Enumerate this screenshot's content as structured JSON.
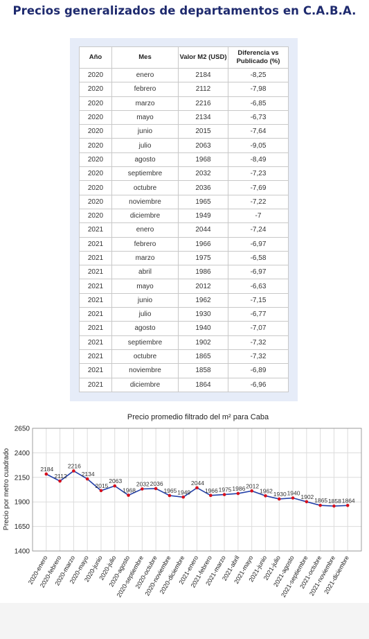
{
  "page": {
    "title": "Precios generalizados de departamentos en C.A.B.A."
  },
  "table": {
    "headers": {
      "anio": "Año",
      "mes": "Mes",
      "valor": "Valor M2 (USD)",
      "diferencia": "Diferencia vs Publicado (%)"
    },
    "rows": [
      [
        "2020",
        "enero",
        "2184",
        "-8,25"
      ],
      [
        "2020",
        "febrero",
        "2112",
        "-7,98"
      ],
      [
        "2020",
        "marzo",
        "2216",
        "-6,85"
      ],
      [
        "2020",
        "mayo",
        "2134",
        "-6,73"
      ],
      [
        "2020",
        "junio",
        "2015",
        "-7,64"
      ],
      [
        "2020",
        "julio",
        "2063",
        "-9,05"
      ],
      [
        "2020",
        "agosto",
        "1968",
        "-8,49"
      ],
      [
        "2020",
        "septiembre",
        "2032",
        "-7,23"
      ],
      [
        "2020",
        "octubre",
        "2036",
        "-7,69"
      ],
      [
        "2020",
        "noviembre",
        "1965",
        "-7,22"
      ],
      [
        "2020",
        "diciembre",
        "1949",
        "-7"
      ],
      [
        "2021",
        "enero",
        "2044",
        "-7,24"
      ],
      [
        "2021",
        "febrero",
        "1966",
        "-6,97"
      ],
      [
        "2021",
        "marzo",
        "1975",
        "-6,58"
      ],
      [
        "2021",
        "abril",
        "1986",
        "-6,97"
      ],
      [
        "2021",
        "mayo",
        "2012",
        "-6,63"
      ],
      [
        "2021",
        "junio",
        "1962",
        "-7,15"
      ],
      [
        "2021",
        "julio",
        "1930",
        "-6,77"
      ],
      [
        "2021",
        "agosto",
        "1940",
        "-7,07"
      ],
      [
        "2021",
        "septiembre",
        "1902",
        "-7,32"
      ],
      [
        "2021",
        "octubre",
        "1865",
        "-7,32"
      ],
      [
        "2021",
        "noviembre",
        "1858",
        "-6,89"
      ],
      [
        "2021",
        "diciembre",
        "1864",
        "-6,96"
      ]
    ]
  },
  "chart_data": {
    "type": "line",
    "title": "Precio promedio filtrado del m² para Caba",
    "xlabel": "",
    "ylabel": "Precio por metro cuadrado",
    "categories": [
      "2020-enero",
      "2020-febrero",
      "2020-marzo",
      "2020-mayo",
      "2020-junio",
      "2020-julio",
      "2020-agosto",
      "2020-septiembre",
      "2020-octubre",
      "2020-noviembre",
      "2020-diciembre",
      "2021-enero",
      "2021-febrero",
      "2021-marzo",
      "2021-abril",
      "2021-mayo",
      "2021-junio",
      "2021-julio",
      "2021-agosto",
      "2021-septiembre",
      "2021-octubre",
      "2021-noviembre",
      "2021-diciembre"
    ],
    "series": [
      {
        "values": [
          2184,
          2112,
          2216,
          2134,
          2015,
          2063,
          1968,
          2032,
          2036,
          1965,
          1949,
          2044,
          1966,
          1975,
          1986,
          2012,
          1962,
          1930,
          1940,
          1902,
          1865,
          1858,
          1864
        ]
      }
    ],
    "ylim": [
      1400,
      2650
    ],
    "yticks": [
      1400,
      1650,
      1900,
      2150,
      2400,
      2650
    ],
    "grid": true,
    "data_labels": true,
    "colors": {
      "line": "#2340a8",
      "marker": "#d8101c",
      "grid": "#dcdcdc"
    }
  }
}
